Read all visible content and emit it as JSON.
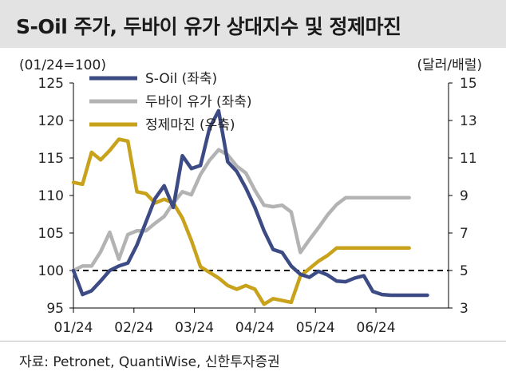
{
  "title": "S-Oil 주가, 두바이 유가 상대지수 및 정제마진",
  "source": "자료: Petronet, QuantiWise, 신한투자증권",
  "chart_data": {
    "type": "line",
    "left_axis_label": "(01/24=100)",
    "right_axis_label": "(달러/배럴)",
    "left_ylim": [
      95,
      125
    ],
    "left_yticks": [
      95,
      100,
      105,
      110,
      115,
      120,
      125
    ],
    "right_ylim": [
      3,
      15
    ],
    "right_yticks": [
      3,
      5,
      7,
      9,
      11,
      13,
      15
    ],
    "x_range": [
      0,
      6.2
    ],
    "x_ticks": [
      0,
      1,
      2,
      3,
      4,
      5
    ],
    "x_tick_labels": [
      "01/24",
      "02/24",
      "03/24",
      "04/24",
      "05/24",
      "06/24"
    ],
    "reference_line": {
      "value": 100,
      "axis": "left",
      "style": "dashed"
    },
    "series": [
      {
        "name": "S-Oil (좌축)",
        "axis": "left",
        "color": "#3d4b85",
        "x": [
          0,
          0.15,
          0.3,
          0.45,
          0.6,
          0.75,
          0.9,
          1.05,
          1.2,
          1.35,
          1.5,
          1.65,
          1.8,
          1.95,
          2.1,
          2.25,
          2.4,
          2.55,
          2.7,
          2.85,
          3.0,
          3.15,
          3.3,
          3.45,
          3.6,
          3.75,
          3.9,
          4.05,
          4.2,
          4.35,
          4.5,
          4.65,
          4.8,
          4.95,
          5.1,
          5.25,
          5.4,
          5.55,
          5.7,
          5.85
        ],
        "values": [
          100,
          96.8,
          97.3,
          98.6,
          100.0,
          100.6,
          101.0,
          103.4,
          106.5,
          109.6,
          111.3,
          108.4,
          115.3,
          113.6,
          114.0,
          119.0,
          121.3,
          114.5,
          113.2,
          111.0,
          108.4,
          105.3,
          102.8,
          102.4,
          100.6,
          99.5,
          99.1,
          99.9,
          99.4,
          98.6,
          98.5,
          99.0,
          99.3,
          97.2,
          96.8,
          96.7,
          96.7,
          96.7,
          96.7,
          96.7
        ]
      },
      {
        "name": "두바이 유가 (좌축)",
        "axis": "left",
        "color": "#b3b3b3",
        "x": [
          0,
          0.15,
          0.3,
          0.45,
          0.6,
          0.75,
          0.9,
          1.05,
          1.2,
          1.35,
          1.5,
          1.65,
          1.8,
          1.95,
          2.1,
          2.25,
          2.4,
          2.55,
          2.7,
          2.85,
          3.0,
          3.15,
          3.3,
          3.45,
          3.6,
          3.75,
          3.9,
          4.05,
          4.2,
          4.35,
          4.5,
          4.65,
          4.8,
          4.95,
          5.1,
          5.25,
          5.4,
          5.55
        ],
        "values": [
          100,
          100.6,
          100.6,
          102.5,
          105.1,
          101.5,
          104.8,
          105.3,
          105.3,
          106.3,
          107.2,
          109.0,
          110.5,
          110.1,
          112.8,
          114.7,
          116.1,
          115.4,
          113.9,
          113.0,
          110.7,
          108.7,
          108.5,
          108.7,
          107.8,
          102.4,
          104.1,
          105.7,
          107.4,
          108.8,
          109.7,
          109.7,
          109.7,
          109.7,
          109.7,
          109.7,
          109.7,
          109.7
        ]
      },
      {
        "name": "정제마진 (우축)",
        "axis": "right",
        "color": "#c9a21c",
        "x": [
          0,
          0.15,
          0.3,
          0.45,
          0.6,
          0.75,
          0.9,
          1.05,
          1.2,
          1.35,
          1.5,
          1.65,
          1.8,
          1.95,
          2.1,
          2.25,
          2.4,
          2.55,
          2.7,
          2.85,
          3.0,
          3.15,
          3.3,
          3.45,
          3.6,
          3.75,
          3.9,
          4.05,
          4.2,
          4.35,
          4.5,
          4.65,
          4.8,
          4.95,
          5.1,
          5.25,
          5.4,
          5.55
        ],
        "values": [
          9.7,
          9.6,
          11.3,
          10.9,
          11.4,
          12.0,
          11.9,
          9.2,
          9.1,
          8.6,
          8.8,
          8.6,
          7.8,
          6.6,
          5.2,
          4.9,
          4.6,
          4.2,
          4.0,
          4.2,
          4.0,
          3.2,
          3.5,
          3.4,
          3.3,
          4.7,
          5.1,
          5.5,
          5.8,
          6.2,
          6.2,
          6.2,
          6.2,
          6.2,
          6.2,
          6.2,
          6.2,
          6.2
        ]
      }
    ]
  }
}
